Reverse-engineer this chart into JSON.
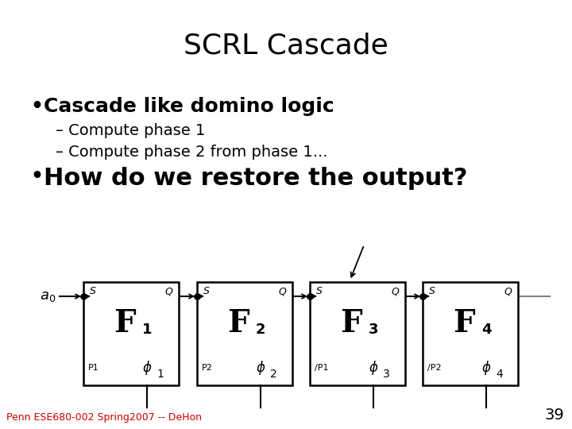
{
  "title": "SCRL Cascade",
  "bullet1": "Cascade like domino logic",
  "sub1": "– Compute phase 1",
  "sub2": "– Compute phase 2 from phase 1...",
  "bullet2": "How do we restore the output?",
  "footer": "Penn ESE680-002 Spring2007 -- DeHon",
  "page_num": "39",
  "boxes": [
    {
      "label": "P1",
      "phi_sub": "1",
      "F_sub": "1"
    },
    {
      "label": "P2",
      "phi_sub": "2",
      "F_sub": "2"
    },
    {
      "label": "/P1",
      "phi_sub": "3",
      "F_sub": "3"
    },
    {
      "label": "/P2",
      "phi_sub": "4",
      "F_sub": "4"
    }
  ],
  "bg_color": "#ffffff",
  "text_color": "#000000",
  "footer_color": "#cc0000"
}
